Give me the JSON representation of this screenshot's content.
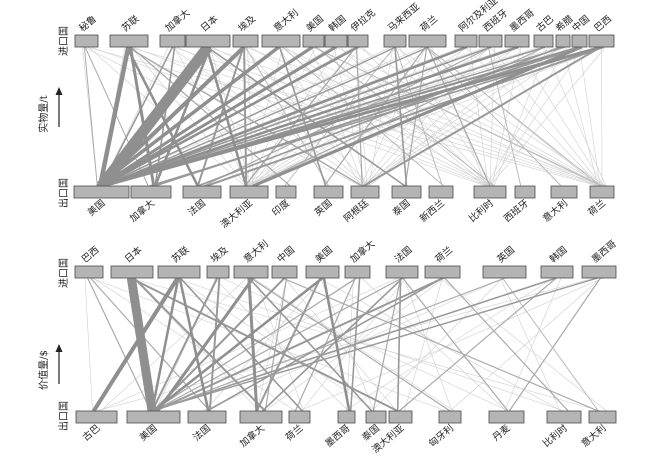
{
  "axis_labels": {
    "importers": "进口国",
    "exporters": "出口国",
    "volume": "实物量/t",
    "value": "价值量/$"
  },
  "volume_panel": {
    "importers": [
      "秘鲁",
      "苏联",
      "加拿大",
      "日本",
      "埃及",
      "意大利",
      "美国",
      "韩国",
      "伊拉克",
      "马来西亚",
      "荷兰",
      "阿尔及利亚",
      "西班牙",
      "墨西哥",
      "古巴",
      "希腊",
      "中国",
      "巴西"
    ],
    "exporters": [
      "美国",
      "加拿大",
      "法国",
      "澳大利亚",
      "印度",
      "英国",
      "阿根廷",
      "泰国",
      "新西兰",
      "比利时",
      "西班牙",
      "意大利",
      "荷兰"
    ]
  },
  "value_panel": {
    "importers": [
      "巴西",
      "日本",
      "苏联",
      "埃及",
      "意大利",
      "中国",
      "美国",
      "加拿大",
      "法国",
      "荷兰",
      "英国",
      "韩国",
      "墨西哥"
    ],
    "exporters": [
      "古巴",
      "美国",
      "法国",
      "加拿大",
      "荷兰",
      "墨西哥",
      "泰国",
      "澳大利亚",
      "匈牙利",
      "丹麦",
      "比利时",
      "意大利"
    ]
  }
}
